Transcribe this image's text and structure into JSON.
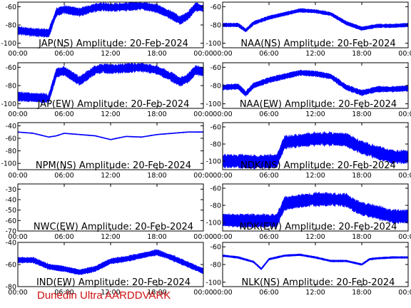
{
  "footer": "Dunedin Ultra AARDDVARK",
  "colors": {
    "trace": "#0000ff",
    "axes": "#000000",
    "footer": "#d01010"
  },
  "chart_data": [
    {
      "type": "line",
      "title": "JAP(NS) Amplitude: 20-Feb-2024",
      "xticks": [
        "00:00",
        "06:00",
        "12:00",
        "18:00",
        "00:00"
      ],
      "ylim": [
        -105,
        -55
      ],
      "yticks": [
        -100,
        -80,
        -60
      ],
      "series": [
        {
          "x": [
            0,
            2,
            4,
            5,
            6,
            8,
            10,
            11,
            12,
            14,
            16,
            18,
            19,
            20,
            21,
            22,
            23,
            24
          ],
          "y": [
            -86,
            -88,
            -89,
            -66,
            -63,
            -66,
            -61,
            -60,
            -61,
            -60,
            -59,
            -62,
            -66,
            -70,
            -75,
            -70,
            -60,
            -62
          ],
          "band": 9
        }
      ]
    },
    {
      "type": "line",
      "title": "NAA(NS) Amplitude: 20-Feb-2024",
      "xticks": [
        "00:00",
        "06:00",
        "12:00",
        "18:00",
        "00:00"
      ],
      "ylim": [
        -105,
        -55
      ],
      "yticks": [
        -100,
        -80,
        -60
      ],
      "series": [
        {
          "x": [
            0,
            2,
            3,
            4,
            6,
            8,
            10,
            12,
            14,
            16,
            18,
            20,
            22,
            24
          ],
          "y": [
            -80,
            -80,
            -86,
            -78,
            -72,
            -68,
            -64,
            -65,
            -68,
            -78,
            -84,
            -81,
            -81,
            -80
          ],
          "band": 4
        }
      ]
    },
    {
      "type": "line",
      "title": "JAP(EW) Amplitude: 20-Feb-2024",
      "xticks": [
        "00:00",
        "06:00",
        "12:00",
        "18:00",
        "00:00"
      ],
      "ylim": [
        -105,
        -55
      ],
      "yticks": [
        -100,
        -80,
        -60
      ],
      "series": [
        {
          "x": [
            0,
            2,
            4,
            5,
            6,
            8,
            10,
            11,
            12,
            14,
            16,
            18,
            19,
            20,
            21,
            22,
            23,
            24
          ],
          "y": [
            -92,
            -93,
            -94,
            -66,
            -64,
            -75,
            -63,
            -61,
            -62,
            -61,
            -60,
            -63,
            -67,
            -71,
            -76,
            -72,
            -63,
            -65
          ],
          "band": 10
        }
      ]
    },
    {
      "type": "line",
      "title": "NAA(EW) Amplitude: 20-Feb-2024",
      "xticks": [
        "00:00",
        "06:00",
        "12:00",
        "18:00",
        "00:00"
      ],
      "ylim": [
        -105,
        -55
      ],
      "yticks": [
        -100,
        -80,
        -60
      ],
      "series": [
        {
          "x": [
            0,
            2,
            3,
            4,
            6,
            8,
            10,
            12,
            14,
            16,
            18,
            20,
            22,
            24
          ],
          "y": [
            -82,
            -81,
            -89,
            -80,
            -74,
            -70,
            -66,
            -67,
            -70,
            -82,
            -88,
            -84,
            -84,
            -83
          ],
          "band": 6
        }
      ]
    },
    {
      "type": "line",
      "title": "NPM(NS) Amplitude: 20-Feb-2024",
      "xticks": [
        "00:00",
        "06:00",
        "12:00",
        "18:00",
        "00:00"
      ],
      "ylim": [
        -110,
        -35
      ],
      "yticks": [
        -100,
        -80,
        -60,
        -40
      ],
      "series": [
        {
          "x": [
            0,
            2,
            4,
            5,
            6,
            8,
            10,
            12,
            14,
            16,
            18,
            20,
            22,
            24
          ],
          "y": [
            -50,
            -52,
            -58,
            -56,
            -52,
            -54,
            -56,
            -62,
            -57,
            -58,
            -54,
            -52,
            -50,
            -50
          ],
          "band": 1
        }
      ]
    },
    {
      "type": "line",
      "title": "NDK(NS) Amplitude: 20-Feb-2024",
      "xticks": [
        "00:00",
        "06:00",
        "12:00",
        "18:00",
        "00:00"
      ],
      "ylim": [
        -110,
        -55
      ],
      "yticks": [
        -100,
        -80,
        -60
      ],
      "series": [
        {
          "x": [
            0,
            2,
            4,
            7,
            8,
            10,
            12,
            14,
            16,
            17,
            18,
            20,
            22,
            24
          ],
          "y": [
            -100,
            -100,
            -101,
            -100,
            -78,
            -76,
            -74,
            -74,
            -75,
            -80,
            -84,
            -90,
            -95,
            -95
          ],
          "band": 16
        }
      ]
    },
    {
      "type": "line",
      "title": "NWC(EW) Amplitude: 20-Feb-2024",
      "xticks": [
        "00:00",
        "06:00",
        "12:00",
        "18:00",
        "00:00"
      ],
      "ylim": [
        -70,
        -25
      ],
      "yticks": [
        -70,
        -60,
        -50,
        -40,
        -30
      ],
      "series": []
    },
    {
      "type": "line",
      "title": "NDK(EW) Amplitude: 20-Feb-2024",
      "xticks": [
        "00:00",
        "06:00",
        "12:00",
        "18:00",
        "00:00"
      ],
      "ylim": [
        -110,
        -55
      ],
      "yticks": [
        -100,
        -80,
        -60
      ],
      "series": [
        {
          "x": [
            0,
            2,
            4,
            7,
            8,
            10,
            12,
            14,
            16,
            17,
            18,
            20,
            22,
            24
          ],
          "y": [
            -97,
            -98,
            -98,
            -98,
            -78,
            -75,
            -73,
            -73,
            -74,
            -80,
            -84,
            -88,
            -93,
            -93
          ],
          "band": 16
        }
      ]
    },
    {
      "type": "line",
      "title": "IND(EW) Amplitude: 20-Feb-2024",
      "xticks": [
        "00:00",
        "06:00",
        "12:00",
        "18:00",
        "00:00"
      ],
      "ylim": [
        -80,
        -40
      ],
      "yticks": [
        -80,
        -60,
        -40
      ],
      "series": [
        {
          "x": [
            0,
            2,
            4,
            6,
            8,
            10,
            12,
            14,
            16,
            18,
            20,
            22,
            24
          ],
          "y": [
            -56,
            -56,
            -62,
            -64,
            -67,
            -64,
            -57,
            -55,
            -52,
            -49,
            -54,
            -60,
            -66
          ],
          "band": 5
        }
      ]
    },
    {
      "type": "line",
      "title": "NLK(NS) Amplitude: 20-Feb-2024",
      "xticks": [
        "00:00",
        "06:00",
        "12:00",
        "18:00",
        "00:00"
      ],
      "ylim": [
        -105,
        -55
      ],
      "yticks": [
        -100,
        -80,
        -60
      ],
      "series": [
        {
          "x": [
            0,
            2,
            4,
            5,
            6,
            8,
            10,
            12,
            14,
            16,
            18,
            19,
            20,
            22,
            24
          ],
          "y": [
            -70,
            -72,
            -77,
            -85,
            -74,
            -70,
            -69,
            -72,
            -76,
            -76,
            -80,
            -74,
            -73,
            -72,
            -72
          ],
          "band": 2
        }
      ]
    }
  ]
}
